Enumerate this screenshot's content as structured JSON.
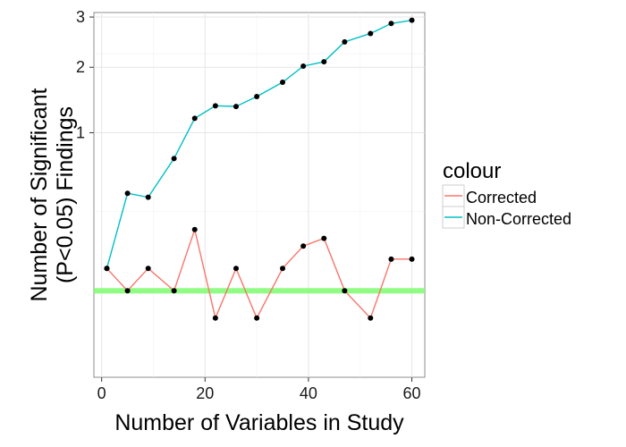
{
  "chart_data": {
    "type": "line",
    "xlabel": "Number of Variables in Study",
    "ylabel_lines": [
      "Number of Significant",
      "(P<0.05) Findings"
    ],
    "x_ticks": [
      0,
      20,
      40,
      60
    ],
    "y_ticks": [
      1,
      2,
      3
    ],
    "xlim": [
      -1.5,
      62.5
    ],
    "ylim": [
      -0.3,
      3.1
    ],
    "y_scale": "sqrt",
    "grid": true,
    "legend": {
      "title": "colour",
      "position": "right"
    },
    "reference_line": {
      "y": 0,
      "color": "#7CFC6E"
    },
    "series": [
      {
        "name": "Corrected",
        "color": "#F8766D",
        "x": [
          1,
          5,
          9,
          14,
          18,
          22,
          26,
          30,
          35,
          39,
          43,
          47,
          52,
          56,
          60
        ],
        "y": [
          0.02,
          0.0,
          0.02,
          0.0,
          0.15,
          -0.03,
          0.02,
          -0.03,
          0.02,
          0.08,
          0.11,
          0.0,
          -0.03,
          0.04,
          0.04
        ]
      },
      {
        "name": "Non-Corrected",
        "color": "#00BFC4",
        "x": [
          1,
          5,
          9,
          14,
          18,
          22,
          26,
          30,
          35,
          39,
          43,
          47,
          52,
          56,
          60
        ],
        "y": [
          0.02,
          0.38,
          0.35,
          0.7,
          1.19,
          1.37,
          1.36,
          1.51,
          1.74,
          2.02,
          2.1,
          2.48,
          2.65,
          2.86,
          2.93
        ]
      }
    ]
  }
}
